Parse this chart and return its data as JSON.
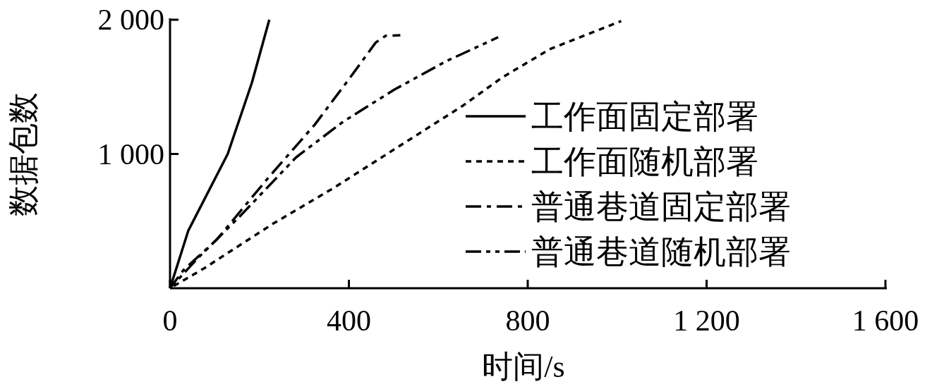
{
  "chart_data": {
    "type": "line",
    "xlabel": "时间/s",
    "ylabel": "数据包数",
    "xlim": [
      0,
      1600
    ],
    "ylim": [
      0,
      2000
    ],
    "xticks": [
      0,
      400,
      800,
      {
        "value": 1200,
        "label": "1 200"
      },
      {
        "value": 1600,
        "label": "1 600"
      }
    ],
    "yticks": [
      {
        "value": 1000,
        "label": "1 000"
      },
      {
        "value": 2000,
        "label": "2 000"
      }
    ],
    "legend": "right",
    "grid": false,
    "series": [
      {
        "name": "工作面固定部署",
        "color": "#000000",
        "line_style": "solid",
        "x": [
          0,
          41,
          129,
          183,
          222
        ],
        "values": [
          0,
          430,
          1000,
          1530,
          2000
        ]
      },
      {
        "name": "工作面随机部署",
        "color": "#000000",
        "line_style": "dotted",
        "x": [
          0,
          77,
          230,
          365,
          523,
          655,
          743,
          849,
          1009
        ],
        "values": [
          0,
          150,
          480,
          745,
          1080,
          1360,
          1570,
          1780,
          1990
        ]
      },
      {
        "name": "普通巷道固定部署",
        "color": "#000000",
        "line_style": "dashdot",
        "x": [
          0,
          30,
          104,
          219,
          324,
          403,
          460,
          482,
          515
        ],
        "values": [
          0,
          135,
          360,
          820,
          1220,
          1570,
          1830,
          1880,
          1885
        ]
      },
      {
        "name": "普通巷道随机部署",
        "color": "#000000",
        "line_style": "dashdotdot",
        "x": [
          0,
          61,
          156,
          282,
          387,
          502,
          617,
          734
        ],
        "values": [
          0,
          220,
          535,
          975,
          1240,
          1480,
          1690,
          1870
        ]
      }
    ]
  }
}
